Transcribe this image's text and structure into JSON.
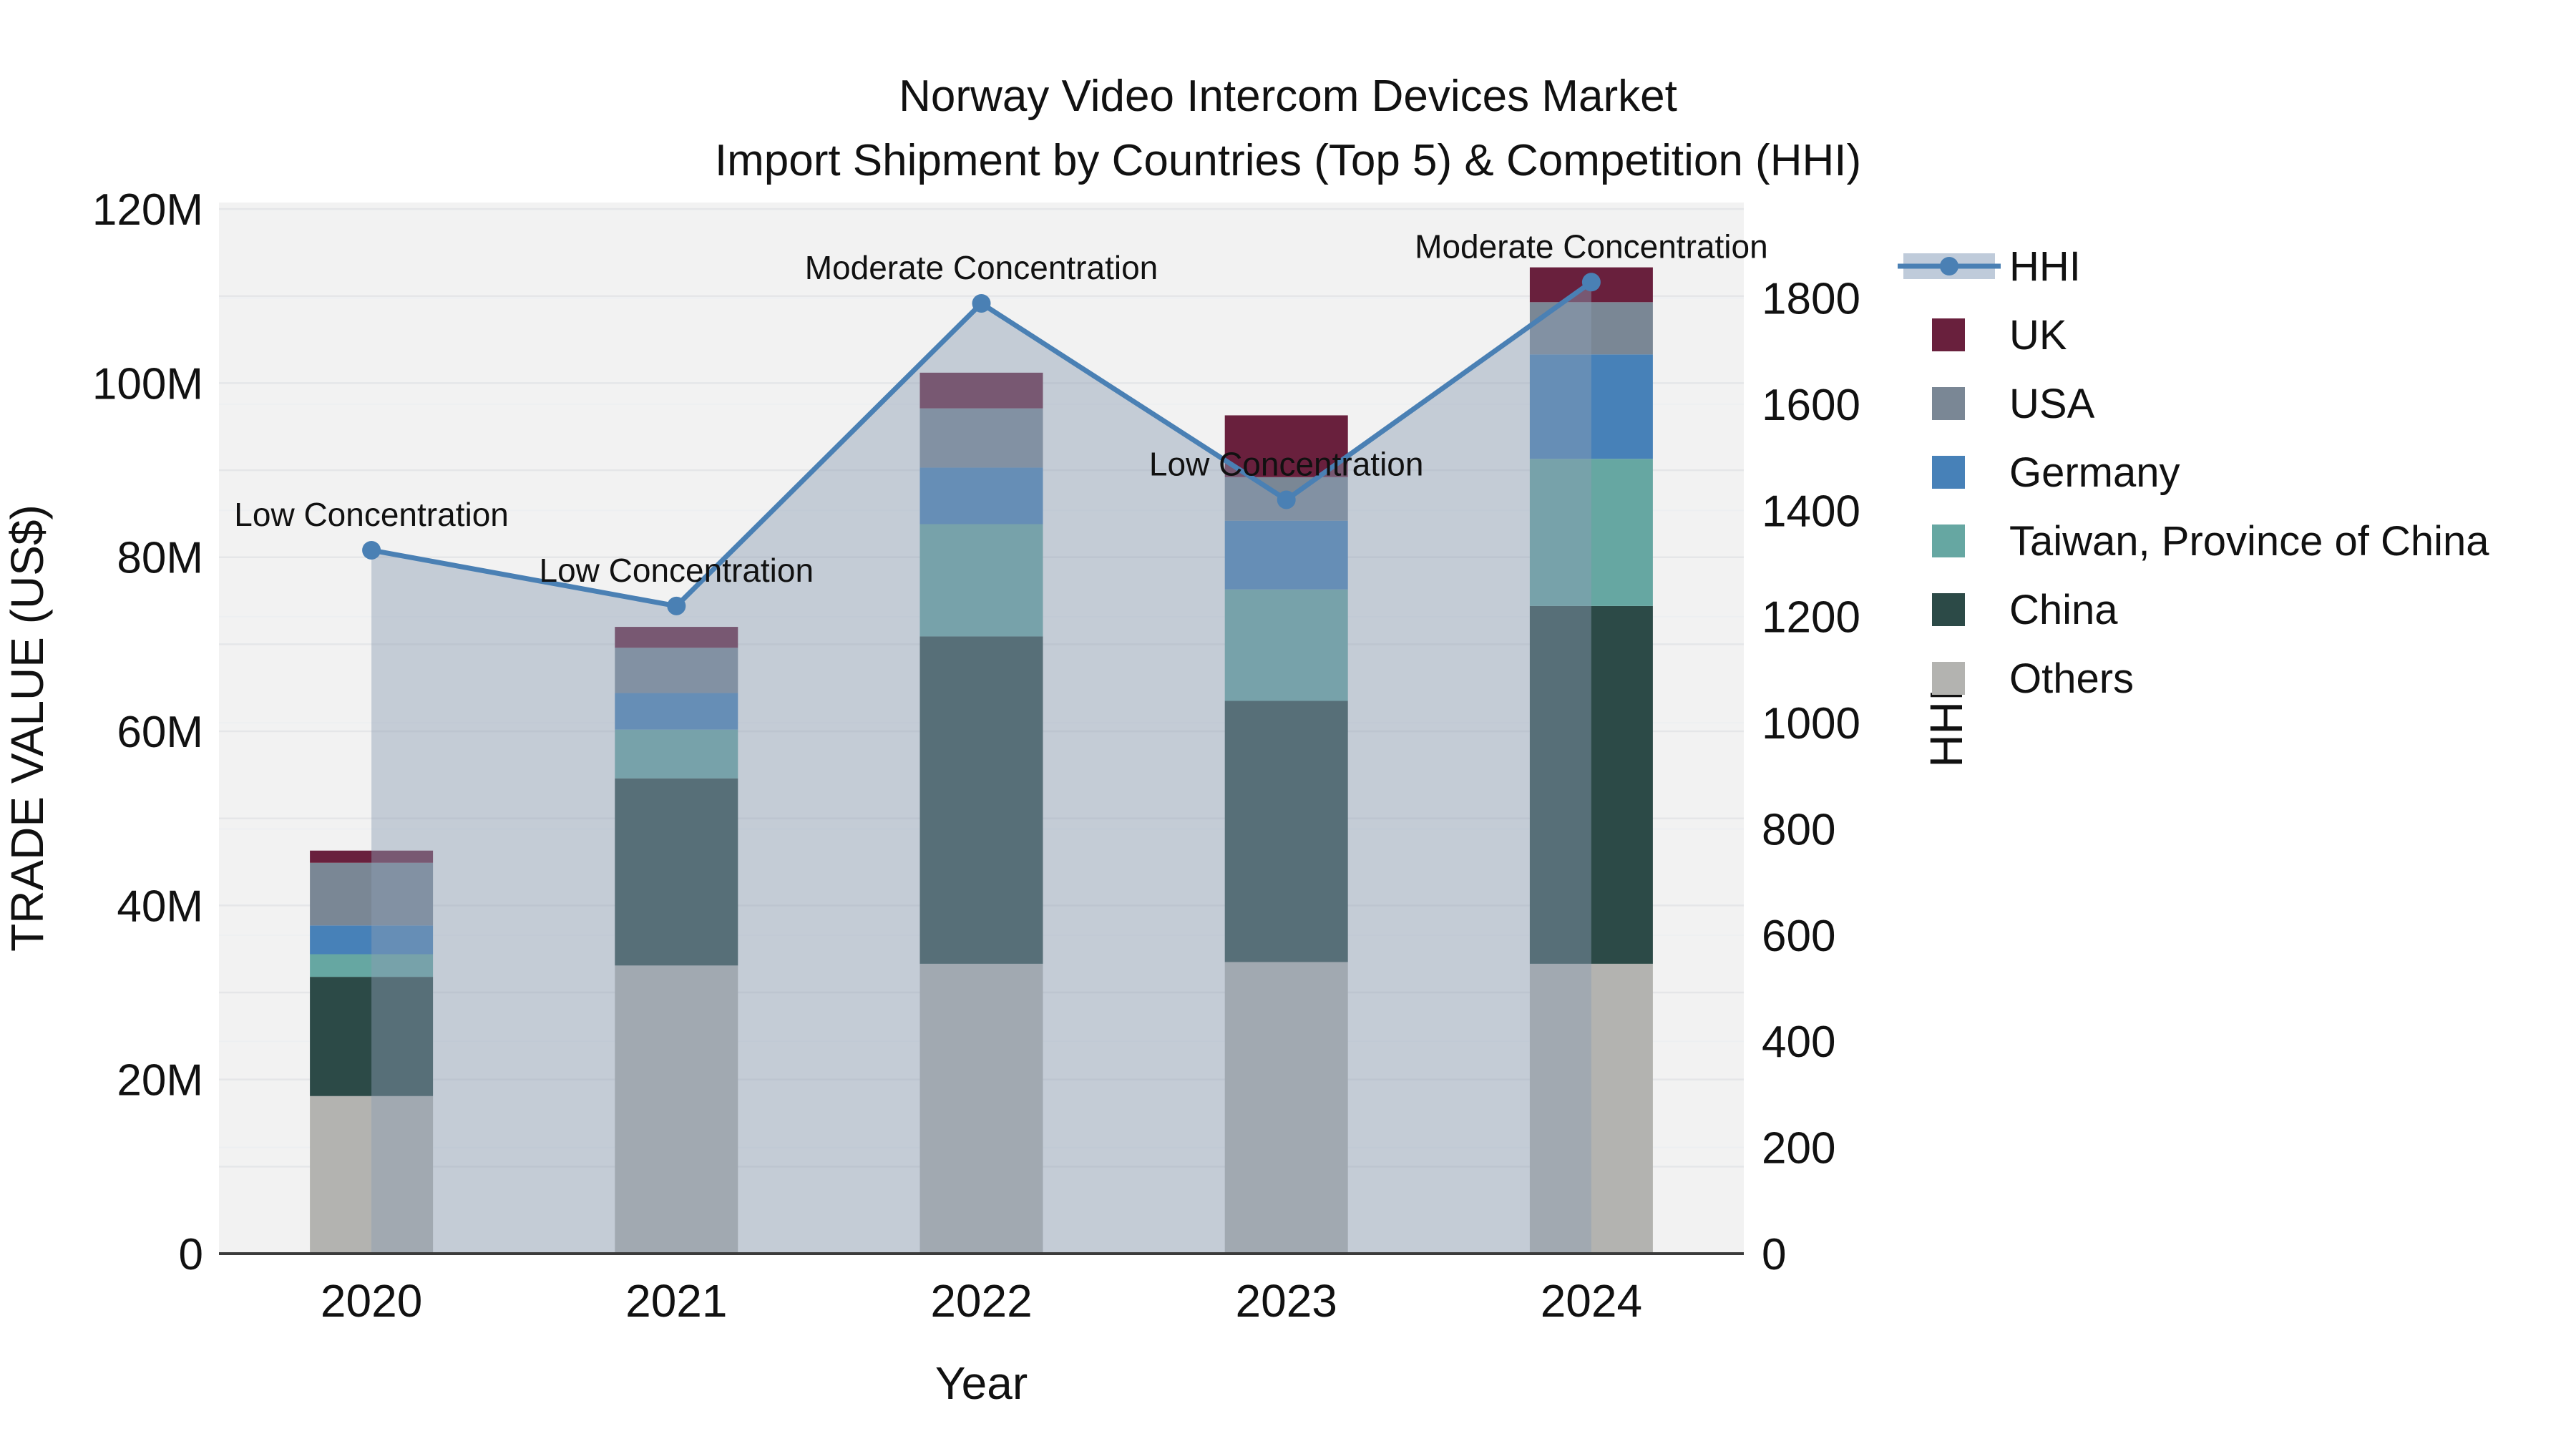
{
  "title": {
    "line1": "Norway Video Intercom Devices Market",
    "line2": "Import Shipment by Countries (Top 5) & Competition (HHI)"
  },
  "colors": {
    "hhi_line": "#4a80b4",
    "area_fill": "rgba(140,158,180,0.45)",
    "legend_band": "rgba(170,186,205,0.75)",
    "uk": "#69203d",
    "usa": "#7a8795",
    "germany": "#4781b8",
    "taiwan": "#66a7a2",
    "china": "#2c4a47",
    "others": "#b3b3b0",
    "plot_bg": "#f2f2f2",
    "grid": "#e5e6e8",
    "grid_minor": "#edeff1",
    "axis_line": "#3b3b3b",
    "text": "#111111"
  },
  "chart_data": {
    "type": "stacked_bar_with_line",
    "title": "Norway Video Intercom Devices Market",
    "subtitle": "Import Shipment by Countries (Top 5) & Competition (HHI)",
    "xlabel": "Year",
    "ylabel": "TRADE VALUE (US$)",
    "ylabel_right": "HHI",
    "grid": "on",
    "legend_position": "top-right-outside",
    "categories": [
      "2020",
      "2021",
      "2022",
      "2023",
      "2024"
    ],
    "stack_order_bottom_to_top": [
      "Others",
      "China",
      "Taiwan, Province of China",
      "Germany",
      "USA",
      "UK"
    ],
    "series": [
      {
        "name": "Others",
        "color_key": "others",
        "values": [
          18.1,
          33.1,
          33.3,
          33.5,
          33.3
        ]
      },
      {
        "name": "China",
        "color_key": "china",
        "values": [
          13.7,
          21.5,
          37.6,
          30.0,
          41.1
        ]
      },
      {
        "name": "Taiwan, Province of China",
        "color_key": "taiwan",
        "values": [
          2.6,
          5.6,
          12.9,
          12.8,
          16.9
        ]
      },
      {
        "name": "Germany",
        "color_key": "germany",
        "values": [
          3.3,
          4.2,
          6.5,
          7.9,
          12.0
        ]
      },
      {
        "name": "USA",
        "color_key": "usa",
        "values": [
          7.2,
          5.2,
          6.8,
          5.0,
          6.0
        ]
      },
      {
        "name": "UK",
        "color_key": "uk",
        "values": [
          1.4,
          2.4,
          4.1,
          7.1,
          4.0
        ]
      }
    ],
    "bar_totals": [
      46.3,
      72.0,
      101.2,
      96.3,
      113.3
    ],
    "line_series": {
      "name": "HHI",
      "color_key": "hhi_line",
      "values": [
        1325,
        1220,
        1790,
        1420,
        1830
      ],
      "area_fill_to_zero": true
    },
    "annotations": [
      {
        "category": "2020",
        "text": "Low Concentration"
      },
      {
        "category": "2021",
        "text": "Low Concentration"
      },
      {
        "category": "2022",
        "text": "Moderate Concentration"
      },
      {
        "category": "2023",
        "text": "Low Concentration"
      },
      {
        "category": "2024",
        "text": "Moderate Concentration"
      }
    ],
    "ylim_left": [
      0,
      120.75
    ],
    "ylim_right": [
      0,
      1980
    ],
    "yticks_left": [
      {
        "value": 0,
        "label": "0"
      },
      {
        "value": 20,
        "label": "20M"
      },
      {
        "value": 40,
        "label": "40M"
      },
      {
        "value": 60,
        "label": "60M"
      },
      {
        "value": 80,
        "label": "80M"
      },
      {
        "value": 100,
        "label": "100M"
      },
      {
        "value": 120,
        "label": "120M"
      }
    ],
    "yticks_right": [
      {
        "value": 0,
        "label": "0"
      },
      {
        "value": 200,
        "label": "200"
      },
      {
        "value": 400,
        "label": "400"
      },
      {
        "value": 600,
        "label": "600"
      },
      {
        "value": 800,
        "label": "800"
      },
      {
        "value": 1000,
        "label": "1000"
      },
      {
        "value": 1200,
        "label": "1200"
      },
      {
        "value": 1400,
        "label": "1400"
      },
      {
        "value": 1600,
        "label": "1600"
      },
      {
        "value": 1800,
        "label": "1800"
      }
    ]
  },
  "legend": {
    "items": [
      {
        "label": "HHI",
        "type": "line",
        "color_key": "hhi_line"
      },
      {
        "label": "UK",
        "type": "square",
        "color_key": "uk"
      },
      {
        "label": "USA",
        "type": "square",
        "color_key": "usa"
      },
      {
        "label": "Germany",
        "type": "square",
        "color_key": "germany"
      },
      {
        "label": "Taiwan, Province of China",
        "type": "square",
        "color_key": "taiwan"
      },
      {
        "label": "China",
        "type": "square",
        "color_key": "china"
      },
      {
        "label": "Others",
        "type": "square",
        "color_key": "others"
      }
    ]
  }
}
